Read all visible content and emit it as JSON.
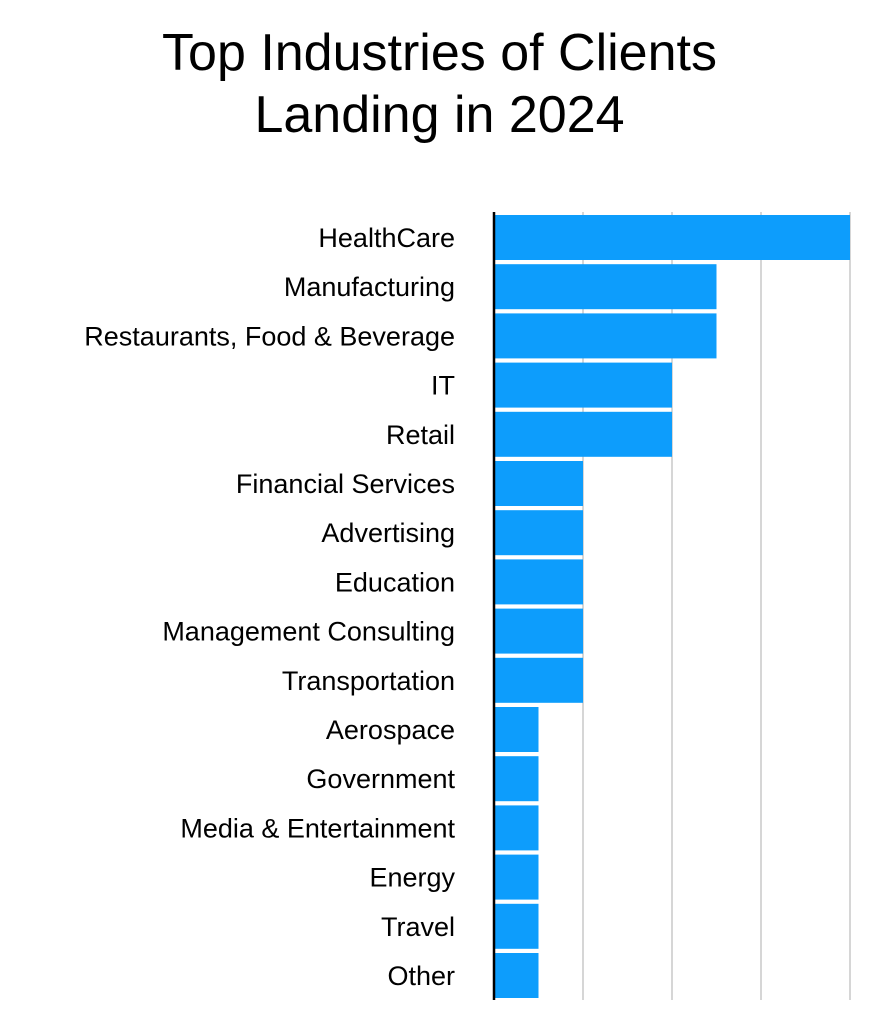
{
  "chart_data": {
    "type": "bar",
    "orientation": "horizontal",
    "title": "Top Industries of Clients Landing in 2024",
    "title_lines": [
      "Top Industries of Clients",
      "Landing in 2024"
    ],
    "xlabel": "",
    "ylabel": "",
    "categories": [
      "HealthCare",
      "Manufacturing",
      "Restaurants, Food & Beverage",
      "IT",
      "Retail",
      "Financial Services",
      "Advertising",
      "Education",
      "Management Consulting",
      "Transportation",
      "Aerospace",
      "Government",
      "Media & Entertainment",
      "Energy",
      "Travel",
      "Other"
    ],
    "values": [
      8,
      5,
      5,
      4,
      4,
      2,
      2,
      2,
      2,
      2,
      1,
      1,
      1,
      1,
      1,
      1
    ],
    "xlim": [
      0,
      8
    ],
    "grid": true,
    "grid_interval": 2,
    "tick_labels_shown": false,
    "bar_color": "#0d9dfc",
    "grid_color": "#c8c8c8",
    "axis_color": "#000000"
  }
}
